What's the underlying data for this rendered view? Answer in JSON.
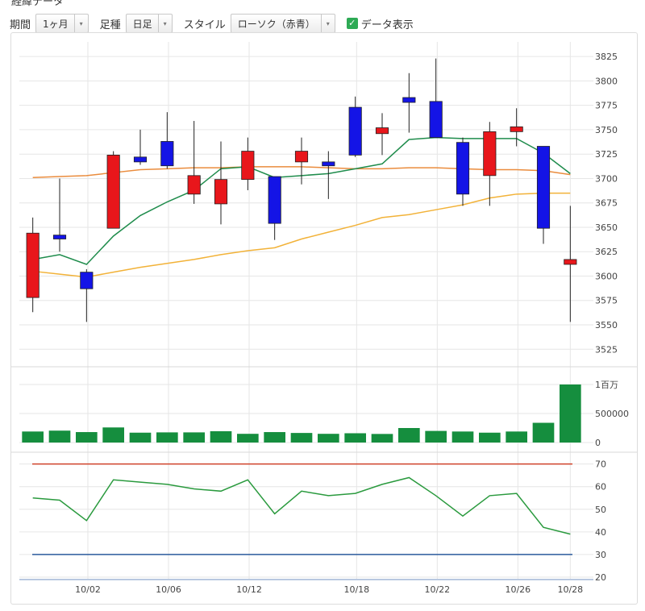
{
  "header_cut": "経緯データ",
  "toolbar": {
    "period_label": "期間",
    "period_value": "1ヶ月",
    "candle_label": "足種",
    "candle_value": "日足",
    "style_label": "スタイル",
    "style_value": "ローソク（赤青）",
    "data_display_label": "データ表示",
    "data_display_checked": true,
    "dropdown_arrow": "▾"
  },
  "chart_data": [
    {
      "type": "candlestick",
      "x_tick_labels": [
        "10/02",
        "10/06",
        "10/12",
        "10/18",
        "10/22",
        "10/26",
        "10/28"
      ],
      "y_tick_labels": [
        "3825",
        "3800",
        "3775",
        "3750",
        "3725",
        "3700",
        "3675",
        "3650",
        "3625",
        "3600",
        "3575",
        "3550",
        "3525"
      ],
      "ylim": [
        3512,
        3840
      ],
      "up_color": "#e8161b",
      "down_color": "#1414e6",
      "candles": [
        {
          "o": 3578,
          "h": 3660,
          "l": 3563,
          "c": 3644
        },
        {
          "o": 3642,
          "h": 3700,
          "l": 3625,
          "c": 3638
        },
        {
          "o": 3604,
          "h": 3607,
          "l": 3553,
          "c": 3587
        },
        {
          "o": 3649,
          "h": 3728,
          "l": 3649,
          "c": 3724
        },
        {
          "o": 3722,
          "h": 3750,
          "l": 3714,
          "c": 3717
        },
        {
          "o": 3738,
          "h": 3768,
          "l": 3710,
          "c": 3713
        },
        {
          "o": 3684,
          "h": 3759,
          "l": 3674,
          "c": 3703
        },
        {
          "o": 3674,
          "h": 3738,
          "l": 3653,
          "c": 3699
        },
        {
          "o": 3699,
          "h": 3742,
          "l": 3688,
          "c": 3728
        },
        {
          "o": 3702,
          "h": 3702,
          "l": 3637,
          "c": 3654
        },
        {
          "o": 3717,
          "h": 3742,
          "l": 3694,
          "c": 3728
        },
        {
          "o": 3717,
          "h": 3728,
          "l": 3679,
          "c": 3713
        },
        {
          "o": 3773,
          "h": 3784,
          "l": 3722,
          "c": 3724
        },
        {
          "o": 3746,
          "h": 3767,
          "l": 3724,
          "c": 3752
        },
        {
          "o": 3783,
          "h": 3808,
          "l": 3747,
          "c": 3778
        },
        {
          "o": 3779,
          "h": 3823,
          "l": 3742,
          "c": 3742
        },
        {
          "o": 3737,
          "h": 3742,
          "l": 3672,
          "c": 3684
        },
        {
          "o": 3703,
          "h": 3758,
          "l": 3672,
          "c": 3748
        },
        {
          "o": 3748,
          "h": 3772,
          "l": 3733,
          "c": 3753
        },
        {
          "o": 3733,
          "h": 3733,
          "l": 3633,
          "c": 3649
        },
        {
          "o": 3612,
          "h": 3672,
          "l": 3553,
          "c": 3617
        }
      ],
      "ma_short": {
        "color": "#1f8c4c",
        "values": [
          3617,
          3622,
          3612,
          3641,
          3662,
          3676,
          3688,
          3710,
          3712,
          3701,
          3703,
          3705,
          3710,
          3715,
          3740,
          3742,
          3741,
          3741,
          3741,
          3726,
          3705
        ]
      },
      "ma_mid": {
        "color": "#ea8c3d",
        "values": [
          3701,
          3702,
          3703,
          3706,
          3709,
          3710,
          3711,
          3711,
          3712,
          3712,
          3712,
          3711,
          3710,
          3710,
          3711,
          3711,
          3710,
          3709,
          3709,
          3708,
          3704
        ]
      },
      "ma_long": {
        "color": "#f2b238",
        "values": [
          3605,
          3602,
          3599,
          3604,
          3609,
          3613,
          3617,
          3622,
          3626,
          3629,
          3638,
          3645,
          3652,
          3660,
          3663,
          3668,
          3673,
          3680,
          3684,
          3685,
          3685
        ]
      }
    },
    {
      "type": "bar",
      "name": "volume",
      "y_tick_labels": [
        "1百万",
        "500000",
        "0"
      ],
      "ylim": [
        0,
        1000000
      ],
      "color": "#158e3e",
      "values": [
        190000,
        205000,
        180000,
        260000,
        170000,
        175000,
        175000,
        195000,
        150000,
        180000,
        165000,
        150000,
        160000,
        148000,
        250000,
        200000,
        190000,
        170000,
        190000,
        340000,
        1000000
      ]
    },
    {
      "type": "line",
      "name": "oscillator",
      "y_tick_labels": [
        "70",
        "60",
        "50",
        "40",
        "30",
        "20"
      ],
      "ylim": [
        20,
        72
      ],
      "color": "#2a9a3e",
      "upper_line": {
        "value": 70,
        "color": "#d0432b"
      },
      "lower_line": {
        "value": 30,
        "color": "#2a5a9c"
      },
      "values": [
        55,
        54,
        45,
        63,
        62,
        61,
        59,
        58,
        63,
        48,
        58,
        56,
        57,
        61,
        64,
        56,
        47,
        56,
        57,
        42,
        39
      ]
    }
  ]
}
